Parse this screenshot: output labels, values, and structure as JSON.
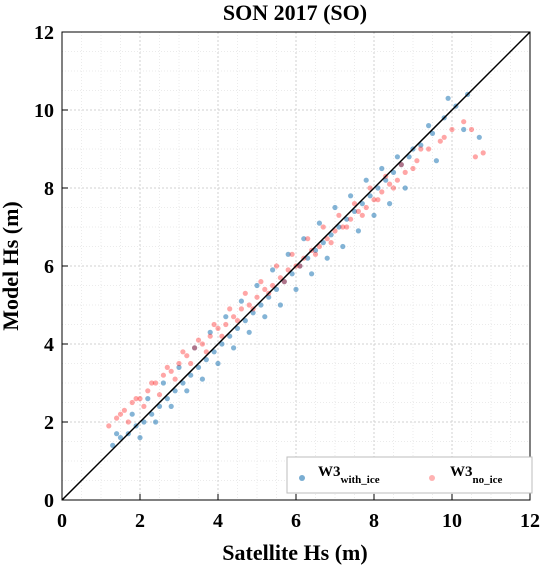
{
  "chart_data": {
    "type": "scatter",
    "title": "SON 2017 (SO)",
    "xlabel": "Satellite Hs (m)",
    "ylabel": "Model Hs (m)",
    "xlim": [
      0,
      12
    ],
    "ylim": [
      0,
      12
    ],
    "xticks": [
      "0",
      "2",
      "4",
      "6",
      "8",
      "10",
      "12"
    ],
    "yticks": [
      "0",
      "2",
      "4",
      "6",
      "8",
      "10",
      "12"
    ],
    "grid": true,
    "reference_line": {
      "x": [
        0,
        12
      ],
      "y": [
        0,
        12
      ],
      "color": "#000000"
    },
    "legend_position": "bottom-right",
    "series": [
      {
        "name_main": "W3",
        "name_sub": "with_ice",
        "color": "#1f77b4",
        "opacity": 0.55,
        "x": [
          1.3,
          1.5,
          1.7,
          1.9,
          2.1,
          2.3,
          2.5,
          2.7,
          2.9,
          3.1,
          3.3,
          3.5,
          3.7,
          3.9,
          4.1,
          4.3,
          4.5,
          4.7,
          4.9,
          5.1,
          5.3,
          5.5,
          5.7,
          5.9,
          6.1,
          6.3,
          6.5,
          6.7,
          6.9,
          7.1,
          7.3,
          7.5,
          7.7,
          7.9,
          8.1,
          8.3,
          8.5,
          8.7,
          8.9,
          9.2,
          9.5,
          9.8,
          10.1,
          10.4,
          10.7,
          1.4,
          1.8,
          2.2,
          2.6,
          3.0,
          3.4,
          3.8,
          4.2,
          4.6,
          5.0,
          5.4,
          5.8,
          6.2,
          6.6,
          7.0,
          7.4,
          7.8,
          8.2,
          8.6,
          9.0,
          9.4,
          9.9,
          2.0,
          2.4,
          2.8,
          3.2,
          3.6,
          4.0,
          4.4,
          4.8,
          5.2,
          5.6,
          6.0,
          6.4,
          6.8,
          7.2,
          7.6,
          8.0,
          8.4,
          8.8,
          9.6,
          10.3
        ],
        "y": [
          1.4,
          1.6,
          1.7,
          1.9,
          2.0,
          2.2,
          2.4,
          2.6,
          2.8,
          3.0,
          3.2,
          3.4,
          3.6,
          3.8,
          4.0,
          4.2,
          4.4,
          4.6,
          4.8,
          5.0,
          5.2,
          5.4,
          5.6,
          5.8,
          6.0,
          6.2,
          6.4,
          6.6,
          6.8,
          7.0,
          7.2,
          7.4,
          7.6,
          7.8,
          8.0,
          8.2,
          8.4,
          8.6,
          8.8,
          9.1,
          9.4,
          9.8,
          10.1,
          10.4,
          9.3,
          1.7,
          2.2,
          2.6,
          3.0,
          3.4,
          3.9,
          4.3,
          4.7,
          5.1,
          5.5,
          5.9,
          6.3,
          6.7,
          7.1,
          7.5,
          7.8,
          8.2,
          8.5,
          8.8,
          9.0,
          9.6,
          10.3,
          1.6,
          2.0,
          2.4,
          2.8,
          3.1,
          3.5,
          3.9,
          4.3,
          4.7,
          5.0,
          5.4,
          5.8,
          6.2,
          6.5,
          6.9,
          7.3,
          7.6,
          8.0,
          8.7,
          9.5
        ]
      },
      {
        "name_main": "W3",
        "name_sub": "no_ice",
        "color": "#ff0000",
        "opacity": 0.35,
        "x": [
          1.2,
          1.4,
          1.6,
          1.8,
          2.0,
          2.2,
          2.4,
          2.6,
          2.8,
          3.0,
          3.2,
          3.4,
          3.6,
          3.8,
          4.0,
          4.2,
          4.4,
          4.6,
          4.8,
          5.0,
          5.2,
          5.4,
          5.6,
          5.8,
          6.0,
          6.2,
          6.4,
          6.6,
          6.8,
          7.0,
          7.2,
          7.4,
          7.6,
          7.8,
          8.0,
          8.2,
          8.4,
          8.6,
          8.8,
          9.1,
          9.4,
          9.7,
          10.0,
          10.3,
          10.6,
          1.5,
          1.9,
          2.3,
          2.7,
          3.1,
          3.5,
          3.9,
          4.3,
          4.7,
          5.1,
          5.5,
          5.9,
          6.3,
          6.7,
          7.1,
          7.5,
          7.9,
          8.3,
          8.7,
          9.2,
          9.8,
          10.5,
          1.7,
          2.1,
          2.5,
          2.9,
          3.3,
          3.7,
          4.1,
          4.5,
          4.9,
          5.3,
          5.7,
          6.1,
          6.5,
          6.9,
          7.3,
          7.7,
          8.1,
          8.5,
          9.0,
          10.8
        ],
        "y": [
          1.9,
          2.1,
          2.3,
          2.5,
          2.6,
          2.8,
          3.0,
          3.2,
          3.3,
          3.5,
          3.7,
          3.9,
          4.0,
          4.2,
          4.4,
          4.5,
          4.7,
          4.9,
          5.0,
          5.2,
          5.4,
          5.5,
          5.7,
          5.9,
          6.0,
          6.2,
          6.4,
          6.5,
          6.7,
          6.9,
          7.0,
          7.2,
          7.4,
          7.5,
          7.7,
          7.9,
          8.1,
          8.2,
          8.4,
          8.7,
          9.0,
          9.2,
          9.5,
          9.7,
          8.8,
          2.2,
          2.6,
          3.0,
          3.4,
          3.8,
          4.1,
          4.5,
          4.9,
          5.3,
          5.6,
          6.0,
          6.3,
          6.7,
          7.0,
          7.3,
          7.6,
          8.0,
          8.3,
          8.6,
          9.0,
          9.3,
          9.5,
          2.0,
          2.4,
          2.7,
          3.1,
          3.5,
          3.8,
          4.2,
          4.6,
          4.9,
          5.3,
          5.6,
          6.0,
          6.3,
          6.6,
          7.0,
          7.3,
          7.7,
          8.0,
          8.5,
          8.9
        ]
      }
    ]
  }
}
